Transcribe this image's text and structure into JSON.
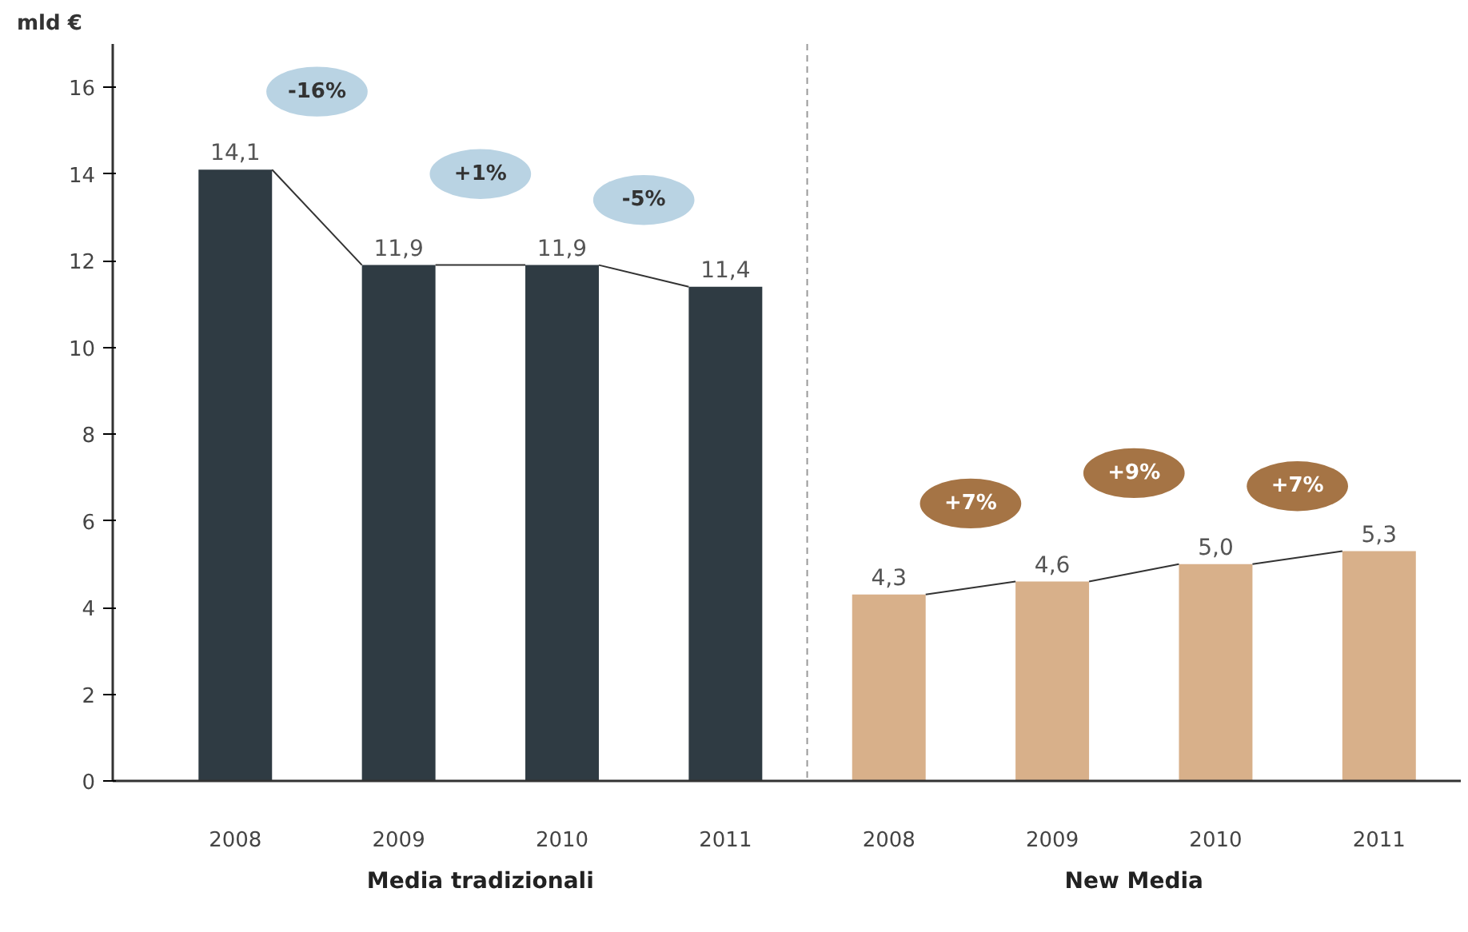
{
  "chart_data": {
    "type": "bar",
    "ylabel": "mld €",
    "categories": [
      "2008",
      "2009",
      "2010",
      "2011",
      "2008",
      "2009",
      "2010",
      "2011"
    ],
    "series": [
      {
        "color": "#2f3b43",
        "values": [
          14.1,
          11.9,
          11.9,
          11.4,
          null,
          null,
          null,
          null
        ],
        "value_labels": [
          "14,1",
          "11,9",
          "11,9",
          "11,4",
          null,
          null,
          null,
          null
        ]
      },
      {
        "color": "#d8b08a",
        "values": [
          null,
          null,
          null,
          null,
          4.3,
          4.6,
          5.0,
          5.3
        ],
        "value_labels": [
          null,
          null,
          null,
          null,
          "4,3",
          "4,6",
          "5,0",
          "5,3"
        ]
      }
    ],
    "annotations": [
      "-16%",
      "+1%",
      "-5%",
      "+7%",
      "+9%",
      "+7%",
      "Media tradizionali",
      "New Media"
    ],
    "ylim": [
      0,
      17
    ],
    "yticks": [
      0,
      2,
      4,
      6,
      8,
      10,
      12,
      14,
      16
    ],
    "grid": false
  }
}
